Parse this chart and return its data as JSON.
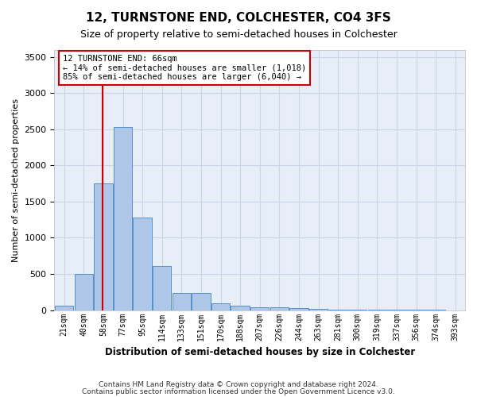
{
  "title": "12, TURNSTONE END, COLCHESTER, CO4 3FS",
  "subtitle": "Size of property relative to semi-detached houses in Colchester",
  "xlabel": "Distribution of semi-detached houses by size in Colchester",
  "ylabel": "Number of semi-detached properties",
  "bin_labels": [
    "21sqm",
    "40sqm",
    "58sqm",
    "77sqm",
    "95sqm",
    "114sqm",
    "133sqm",
    "151sqm",
    "170sqm",
    "188sqm",
    "207sqm",
    "226sqm",
    "244sqm",
    "263sqm",
    "281sqm",
    "300sqm",
    "319sqm",
    "337sqm",
    "356sqm",
    "374sqm",
    "393sqm"
  ],
  "bar_values": [
    60,
    500,
    1750,
    2530,
    1280,
    610,
    235,
    235,
    95,
    60,
    45,
    40,
    30,
    15,
    10,
    5,
    5,
    5,
    2,
    2,
    1
  ],
  "bar_color": "#aec6e8",
  "bar_edge_color": "#5590c8",
  "annotation_title": "12 TURNSTONE END: 66sqm",
  "annotation_line1": "← 14% of semi-detached houses are smaller (1,018)",
  "annotation_line2": "85% of semi-detached houses are larger (6,040) →",
  "vline_color": "#cc0000",
  "vline_x": 1.97,
  "annotation_box_color": "#ffffff",
  "annotation_box_edge": "#cc0000",
  "ylim": [
    0,
    3600
  ],
  "yticks": [
    0,
    500,
    1000,
    1500,
    2000,
    2500,
    3000,
    3500
  ],
  "grid_color": "#ccd5e8",
  "bg_color": "#e8eef8",
  "footer1": "Contains HM Land Registry data © Crown copyright and database right 2024.",
  "footer2": "Contains public sector information licensed under the Open Government Licence v3.0."
}
